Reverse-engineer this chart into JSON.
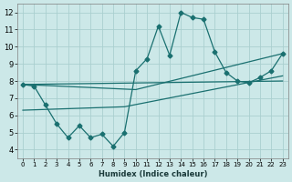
{
  "xlabel": "Humidex (Indice chaleur)",
  "ylabel": "",
  "background_color": "#cce8e8",
  "grid_color": "#aacfcf",
  "line_color": "#1a7070",
  "xlim": [
    -0.5,
    23.5
  ],
  "ylim": [
    3.5,
    12.5
  ],
  "xticks": [
    0,
    1,
    2,
    3,
    4,
    5,
    6,
    7,
    8,
    9,
    10,
    11,
    12,
    13,
    14,
    15,
    16,
    17,
    18,
    19,
    20,
    21,
    22,
    23
  ],
  "yticks": [
    4,
    5,
    6,
    7,
    8,
    9,
    10,
    11,
    12
  ],
  "series1_x": [
    0,
    1,
    2,
    3,
    4,
    5,
    6,
    7,
    8,
    9,
    10,
    11,
    12,
    13,
    14,
    15,
    16,
    17,
    18,
    19,
    20,
    21,
    22,
    23
  ],
  "series1_y": [
    7.8,
    7.7,
    6.6,
    5.5,
    4.7,
    5.4,
    4.7,
    4.9,
    4.2,
    5.0,
    8.6,
    9.3,
    11.2,
    9.5,
    12.0,
    11.7,
    11.6,
    9.7,
    8.5,
    8.0,
    7.9,
    8.2,
    8.6,
    9.6
  ],
  "line2_x": [
    0,
    23
  ],
  "line2_y": [
    7.8,
    8.0
  ],
  "line3_x": [
    0,
    10,
    23
  ],
  "line3_y": [
    7.8,
    7.5,
    9.6
  ],
  "line4_x": [
    0,
    9,
    23
  ],
  "line4_y": [
    6.3,
    6.5,
    8.3
  ]
}
